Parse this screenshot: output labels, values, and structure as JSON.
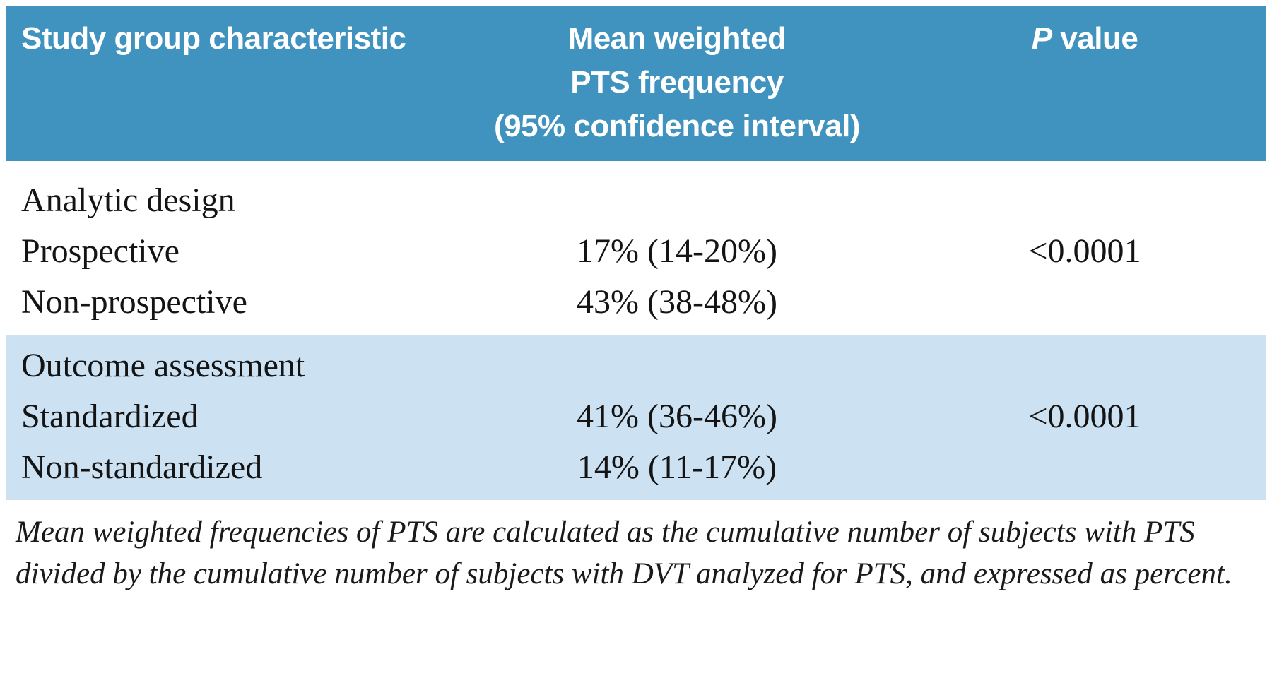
{
  "colors": {
    "header_bg": "#4093be",
    "shaded_section_bg": "#cce1f1",
    "header_text": "#ffffff",
    "body_text": "#141414"
  },
  "table": {
    "header": {
      "col1": "Study group characteristic",
      "col2_lines": [
        "Mean weighted",
        "PTS frequency",
        "(95% confidence interval)"
      ],
      "p_italic": "P",
      "p_rest": "value"
    },
    "sections": [
      {
        "title": "Analytic design",
        "shaded": false,
        "rows": [
          {
            "label": "Prospective",
            "frequency": "17% (14-20%)",
            "p_value": "<0.0001"
          },
          {
            "label": "Non-prospective",
            "frequency": "43% (38-48%)",
            "p_value": ""
          }
        ]
      },
      {
        "title": "Outcome assessment",
        "shaded": true,
        "rows": [
          {
            "label": "Standardized",
            "frequency": "41% (36-46%)",
            "p_value": "<0.0001"
          },
          {
            "label": "Non-standardized",
            "frequency": "14% (11-17%)",
            "p_value": ""
          }
        ]
      }
    ],
    "footnote": "Mean weighted frequencies of PTS are calculated as the cumulative number of subjects with PTS divided by the cumulative number of subjects with DVT analyzed for PTS, and expressed as percent."
  }
}
